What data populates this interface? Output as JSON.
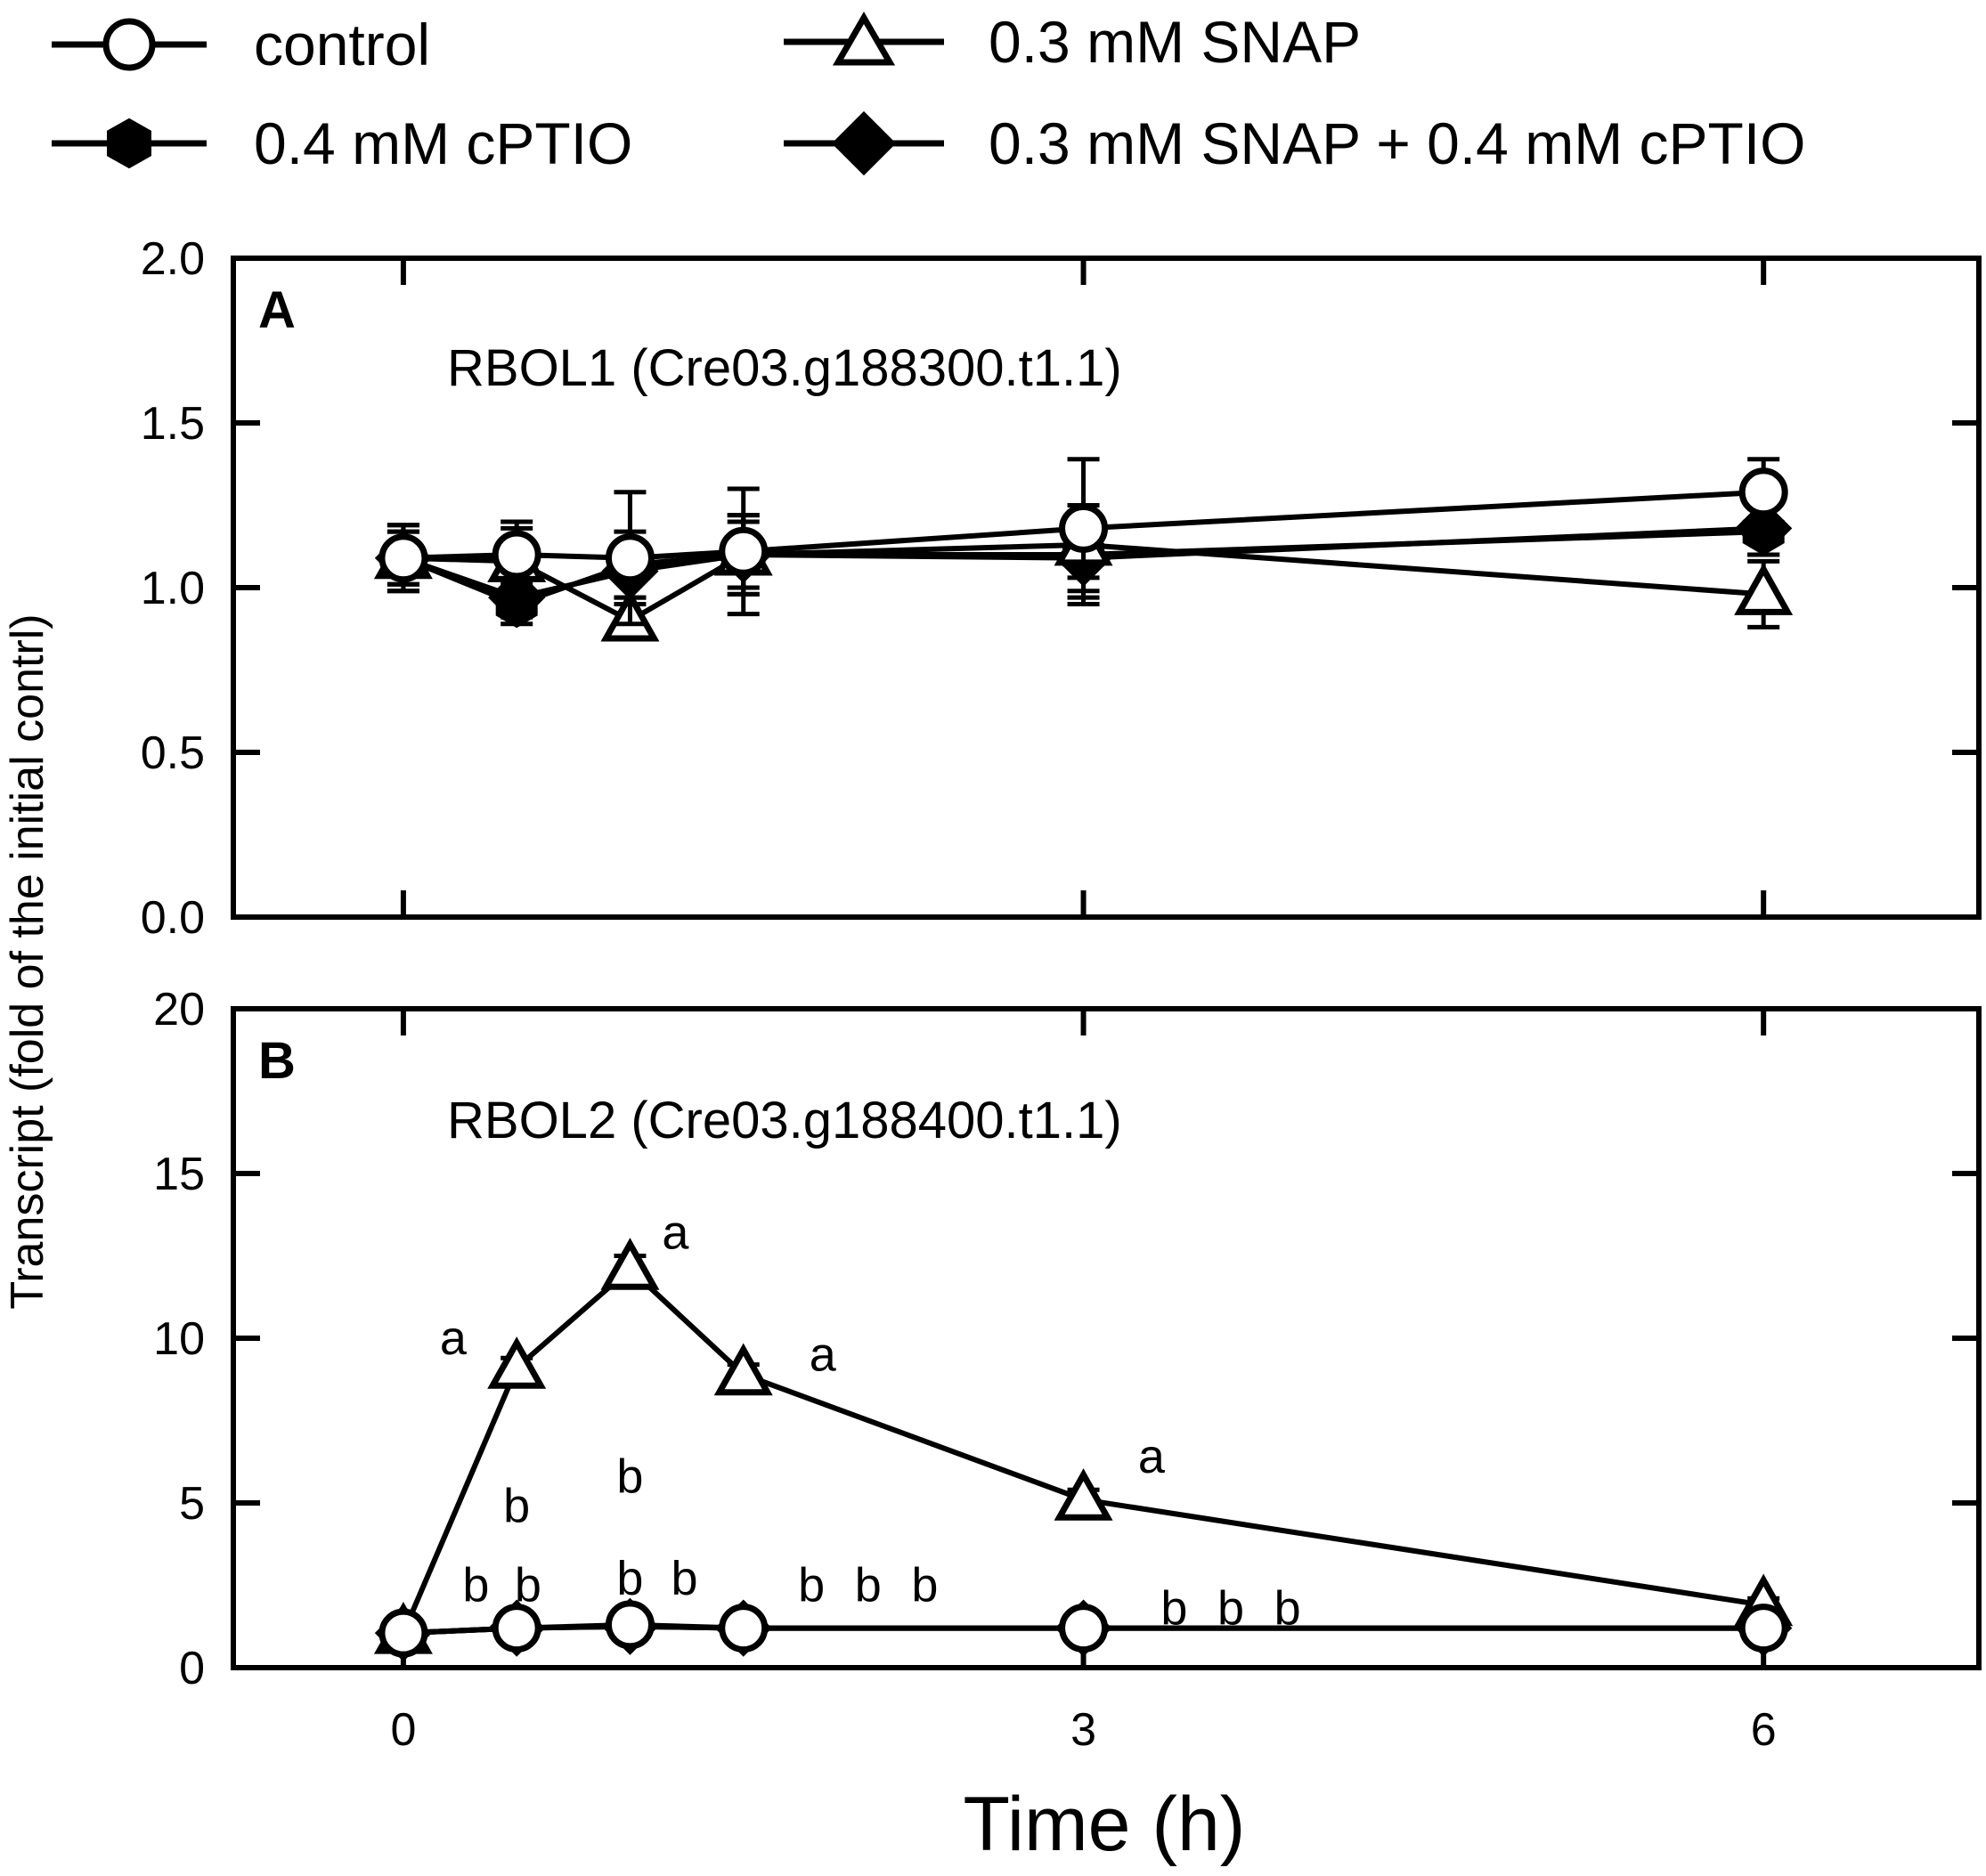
{
  "legend": [
    {
      "label": "control",
      "marker": "circle-open"
    },
    {
      "label": "0.3 mM SNAP",
      "marker": "triangle-open"
    },
    {
      "label": "0.4 mM cPTIO",
      "marker": "hexagon-filled"
    },
    {
      "label": "0.3 mM SNAP + 0.4 mM cPTIO",
      "marker": "diamond-filled"
    }
  ],
  "colors": {
    "ink": "#000000",
    "background": "#ffffff"
  },
  "chart_data": [
    {
      "type": "line",
      "panel": "A",
      "title": "RBOL1 (Cre03.g188300.t1.1)",
      "x": [
        0,
        0.5,
        1,
        1.5,
        3,
        6
      ],
      "xlim": [
        -0.75,
        6.95
      ],
      "ylim": [
        0,
        2
      ],
      "yticks": [
        0,
        0.5,
        1.0,
        1.5,
        2.0
      ],
      "ytick_labels": [
        "0.0",
        "0.5",
        "1.0",
        "1.5",
        "2.0"
      ],
      "series": [
        {
          "name": "0.4 mM cPTIO",
          "marker": "hexagon-filled",
          "values": [
            1.09,
            0.95,
            1.07,
            1.1,
            1.1,
            1.17
          ],
          "errors": [
            0.1,
            0.06,
            0.1,
            0.12,
            0.15,
            0.07
          ]
        },
        {
          "name": "0.3 mM SNAP + 0.4 mM cPTIO",
          "marker": "diamond-filled",
          "values": [
            1.09,
            0.97,
            1.05,
            1.1,
            1.09,
            1.18
          ],
          "errors": [
            0.08,
            0.06,
            0.08,
            0.1,
            0.1,
            0.08
          ]
        },
        {
          "name": "0.3 mM SNAP",
          "marker": "triangle-open",
          "values": [
            1.09,
            1.08,
            0.9,
            1.1,
            1.13,
            0.98
          ],
          "errors": [
            0.08,
            0.1,
            0.05,
            0.12,
            0.1,
            0.1
          ]
        },
        {
          "name": "control",
          "marker": "circle-open",
          "values": [
            1.09,
            1.1,
            1.09,
            1.11,
            1.18,
            1.29
          ],
          "errors": [
            0.1,
            0.1,
            0.2,
            0.19,
            0.21,
            0.1
          ]
        }
      ]
    },
    {
      "type": "line",
      "panel": "B",
      "title": "RBOL2 (Cre03.g188400.t1.1)",
      "x": [
        0,
        0.5,
        1,
        1.5,
        3,
        6
      ],
      "xlim": [
        -0.75,
        6.95
      ],
      "ylim": [
        0,
        20
      ],
      "yticks": [
        0,
        5,
        10,
        15,
        20
      ],
      "ytick_labels": [
        "0",
        "5",
        "10",
        "15",
        "20"
      ],
      "xticks": [
        0,
        3,
        6
      ],
      "xtick_labels": [
        "0",
        "3",
        "6"
      ],
      "xlabel": "Time (h)",
      "series": [
        {
          "name": "0.4 mM cPTIO",
          "marker": "hexagon-filled",
          "values": [
            1.05,
            1.2,
            1.25,
            1.2,
            1.2,
            1.2
          ],
          "errors": [
            0.1,
            0.15,
            0.15,
            0.15,
            0.15,
            0.15
          ]
        },
        {
          "name": "0.3 mM SNAP + 0.4 mM cPTIO",
          "marker": "diamond-filled",
          "values": [
            1.05,
            1.2,
            1.25,
            1.2,
            1.2,
            1.2
          ],
          "errors": [
            0.1,
            0.15,
            0.15,
            0.15,
            0.15,
            0.15
          ]
        },
        {
          "name": "0.3 mM SNAP",
          "marker": "triangle-open",
          "values": [
            1.05,
            9.1,
            12.1,
            8.9,
            5.1,
            1.9
          ],
          "errors": [
            0.1,
            0.3,
            0.4,
            0.3,
            0.3,
            0.2
          ]
        },
        {
          "name": "control",
          "marker": "circle-open",
          "values": [
            1.05,
            1.2,
            1.3,
            1.2,
            1.2,
            1.2
          ],
          "errors": [
            0.1,
            0.15,
            0.15,
            0.15,
            0.15,
            0.15
          ]
        }
      ],
      "annotations": [
        {
          "text": "a",
          "x": 0.22,
          "y": 10.0
        },
        {
          "text": "a",
          "x": 1.2,
          "y": 13.2
        },
        {
          "text": "a",
          "x": 1.85,
          "y": 9.5
        },
        {
          "text": "a",
          "x": 3.3,
          "y": 6.4
        },
        {
          "text": "b",
          "x": 0.5,
          "y": 4.9
        },
        {
          "text": "b",
          "x": 1.0,
          "y": 5.8
        },
        {
          "text": "b",
          "x": 0.32,
          "y": 2.5
        },
        {
          "text": "b",
          "x": 0.55,
          "y": 2.5
        },
        {
          "text": "b",
          "x": 1.0,
          "y": 2.7
        },
        {
          "text": "b",
          "x": 1.24,
          "y": 2.7
        },
        {
          "text": "b",
          "x": 1.8,
          "y": 2.5
        },
        {
          "text": "b",
          "x": 2.05,
          "y": 2.5
        },
        {
          "text": "b",
          "x": 2.3,
          "y": 2.5
        },
        {
          "text": "b",
          "x": 3.4,
          "y": 1.8
        },
        {
          "text": "b",
          "x": 3.65,
          "y": 1.8
        },
        {
          "text": "b",
          "x": 3.9,
          "y": 1.8
        }
      ]
    }
  ],
  "ylabel": "Transcript (fold of the initial contrl)"
}
